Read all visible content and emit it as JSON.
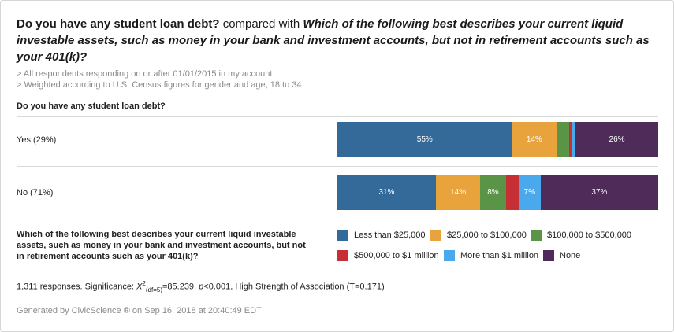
{
  "title": {
    "q1": "Do you have any student loan debt?",
    "connector": " compared with ",
    "q2": "Which of the following best describes your current liquid investable assets, such as money in your bank and investment accounts, but not in retirement accounts such as your 401(k)?"
  },
  "filters": [
    "> All respondents responding on or after 01/01/2015 in my account",
    "> Weighted according to U.S. Census figures for gender and age, 18 to 34"
  ],
  "row_question": "Do you have any student loan debt?",
  "legend_question": "Which of the following best describes your current liquid investable assets, such as money in your bank and investment accounts, but not in retirement accounts such as your 401(k)?",
  "chart_data": {
    "type": "bar",
    "stacked": true,
    "normalized": true,
    "orientation": "horizontal",
    "categories": [
      "Yes (29%)",
      "No (71%)"
    ],
    "series": [
      {
        "name": "Less than $25,000",
        "color": "#336a99",
        "values": [
          55,
          31
        ],
        "labels": [
          "55%",
          "31%"
        ]
      },
      {
        "name": "$25,000 to $100,000",
        "color": "#e8a33d",
        "values": [
          14,
          14
        ],
        "labels": [
          "14%",
          "14%"
        ]
      },
      {
        "name": "$100,000 to $500,000",
        "color": "#5a9447",
        "values": [
          4,
          8
        ],
        "labels": [
          "",
          "8%"
        ]
      },
      {
        "name": "$500,000 to $1 million",
        "color": "#c62f34",
        "values": [
          1,
          4
        ],
        "labels": [
          "",
          ""
        ]
      },
      {
        "name": "More than $1 million",
        "color": "#4aa8ec",
        "values": [
          1,
          7
        ],
        "labels": [
          "",
          "7%"
        ]
      },
      {
        "name": "None",
        "color": "#4f2b5a",
        "values": [
          26,
          37
        ],
        "labels": [
          "26%",
          "37%"
        ]
      }
    ]
  },
  "significance": {
    "prefix": "1,311 responses. Significance: ",
    "chi_symbol": "X",
    "chi_sup": "2",
    "chi_sub": "(df=5)",
    "chi_value": "=85.239, ",
    "p_symbol": "p",
    "p_value": "<0.001, High Strength of Association (T=0.171)"
  },
  "generated": "Generated by CivicScience ® on Sep 16, 2018 at 20:40:49 EDT"
}
